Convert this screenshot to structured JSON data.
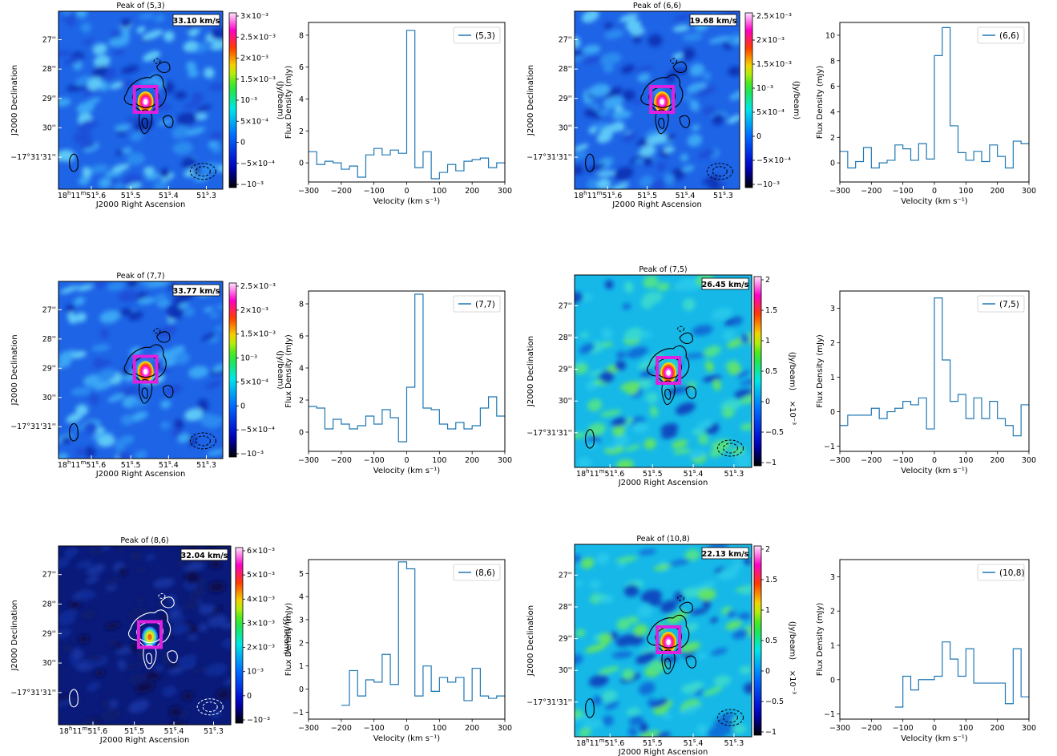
{
  "chart_data": [
    {
      "type": "heatmap",
      "panel": "map",
      "title": "Peak of (5,3)",
      "velocity_label": "33.10 km/s",
      "xlabel": "J2000 Right Ascension",
      "ylabel": "J2000 Declination",
      "ra_ticks": [
        "18h11m51s.6",
        "51s.5",
        "51s.4",
        "51s.3"
      ],
      "dec_ticks": [
        "27''",
        "28''",
        "29''",
        "30''",
        "−17°31'31''"
      ],
      "colorbar_label": "(Jy/beam)",
      "colorbar_ticks": [
        "3×10⁻³",
        "2.5×10⁻³",
        "2×10⁻³",
        "1.5×10⁻³",
        "10⁻³",
        "5×10⁻⁴",
        "0",
        "−5×10⁻⁴",
        "−10⁻³"
      ],
      "colorbar_multiplier": "",
      "contour_color": "#000000",
      "background": "blue",
      "colormap": "jet"
    },
    {
      "type": "line",
      "panel": "spectrum",
      "legend": "(5,3)",
      "xlabel": "Velocity (km s⁻¹)",
      "ylabel": "Flux Density (mJy)",
      "xlim": [
        -300,
        300
      ],
      "ylim": [
        -1.2,
        8.8
      ],
      "xticks": [
        -300,
        -200,
        -100,
        0,
        100,
        200,
        300
      ],
      "yticks": [
        0,
        2,
        4,
        6,
        8
      ],
      "x": [
        -300,
        -275,
        -250,
        -225,
        -200,
        -175,
        -150,
        -125,
        -100,
        -75,
        -50,
        -25,
        0,
        25,
        50,
        75,
        100,
        125,
        150,
        175,
        200,
        225,
        250,
        275
      ],
      "values": [
        0.7,
        -0.1,
        0.1,
        0.0,
        -0.4,
        -0.2,
        -0.9,
        0.5,
        0.9,
        0.5,
        0.8,
        0.6,
        8.3,
        -0.3,
        0.7,
        -1.0,
        -0.6,
        -0.1,
        -0.5,
        0.1,
        0.2,
        0.3,
        -0.3,
        0.0
      ]
    },
    {
      "type": "heatmap",
      "panel": "map",
      "title": "Peak of (6,6)",
      "velocity_label": "19.68 km/s",
      "xlabel": "J2000 Right Ascension",
      "ylabel": "J2000 Declination",
      "ra_ticks": [
        "18h11m51s.6",
        "51s.5",
        "51s.4",
        "51s.3"
      ],
      "dec_ticks": [
        "27''",
        "28''",
        "29''",
        "30''",
        "−17°31'31''"
      ],
      "colorbar_label": "(Jy/beam)",
      "colorbar_ticks": [
        "2.5×10⁻³",
        "2×10⁻³",
        "1.5×10⁻³",
        "10⁻³",
        "5×10⁻⁴",
        "0",
        "−5×10⁻⁴",
        "−10⁻³"
      ],
      "colorbar_multiplier": "",
      "contour_color": "#000000",
      "background": "blue",
      "colormap": "jet"
    },
    {
      "type": "line",
      "panel": "spectrum",
      "legend": "(6,6)",
      "xlabel": "Velocity (km s⁻¹)",
      "ylabel": "Flux Density (mJy)",
      "xlim": [
        -300,
        300
      ],
      "ylim": [
        -1.5,
        11
      ],
      "xticks": [
        -300,
        -200,
        -100,
        0,
        100,
        200,
        300
      ],
      "yticks": [
        0,
        2,
        4,
        6,
        8,
        10
      ],
      "x": [
        -300,
        -275,
        -250,
        -225,
        -200,
        -175,
        -150,
        -125,
        -100,
        -75,
        -50,
        -25,
        0,
        25,
        50,
        75,
        100,
        125,
        150,
        175,
        200,
        225,
        250,
        275
      ],
      "values": [
        0.9,
        -0.4,
        0.1,
        1.2,
        -0.4,
        0.0,
        0.2,
        1.4,
        1.1,
        0.2,
        1.5,
        0.3,
        8.4,
        10.6,
        2.9,
        0.8,
        0.2,
        0.9,
        0.1,
        1.4,
        0.5,
        -0.4,
        1.7,
        1.5
      ]
    },
    {
      "type": "heatmap",
      "panel": "map",
      "title": "Peak of (7,7)",
      "velocity_label": "33.77 km/s",
      "xlabel": "J2000 Right Ascension",
      "ylabel": "J2000 Declination",
      "ra_ticks": [
        "18h11m51s.6",
        "51s.5",
        "51s.4",
        "51s.3"
      ],
      "dec_ticks": [
        "27''",
        "28''",
        "29''",
        "30''",
        "−17°31'31''"
      ],
      "colorbar_label": "(Jy/beam)",
      "colorbar_ticks": [
        "2.5×10⁻³",
        "2×10⁻³",
        "1.5×10⁻³",
        "10⁻³",
        "5×10⁻⁴",
        "0",
        "−5×10⁻⁴",
        "−10⁻³"
      ],
      "colorbar_multiplier": "",
      "contour_color": "#000000",
      "background": "blue",
      "colormap": "jet"
    },
    {
      "type": "line",
      "panel": "spectrum",
      "legend": "(7,7)",
      "xlabel": "Velocity (km s⁻¹)",
      "ylabel": "Flux Density (mJy)",
      "xlim": [
        -300,
        300
      ],
      "ylim": [
        -1.2,
        8.8
      ],
      "xticks": [
        -300,
        -200,
        -100,
        0,
        100,
        200,
        300
      ],
      "yticks": [
        0,
        2,
        4,
        6,
        8
      ],
      "x": [
        -300,
        -275,
        -250,
        -225,
        -200,
        -175,
        -150,
        -125,
        -100,
        -75,
        -50,
        -25,
        0,
        25,
        50,
        75,
        100,
        125,
        150,
        175,
        200,
        225,
        250,
        275
      ],
      "values": [
        1.6,
        1.5,
        0.2,
        0.8,
        0.5,
        0.2,
        0.4,
        1.0,
        0.5,
        1.4,
        0.9,
        -0.6,
        2.8,
        8.6,
        1.5,
        1.4,
        0.5,
        0.2,
        0.6,
        0.2,
        0.4,
        1.5,
        2.2,
        1.0
      ]
    },
    {
      "type": "heatmap",
      "panel": "map",
      "title": "Peak of (7,5)",
      "velocity_label": "26.45 km/s",
      "xlabel": "J2000 Right Ascension",
      "ylabel": "J2000 Declination",
      "ra_ticks": [
        "18h11m51s.6",
        "51s.5",
        "51s.4",
        "51s.3"
      ],
      "dec_ticks": [
        "27''",
        "28''",
        "29''",
        "30''",
        "−17°31'31''"
      ],
      "colorbar_label": "(Jy/beam)",
      "colorbar_ticks": [
        "2",
        "1.5",
        "1",
        "0.5",
        "0",
        "−0.5",
        "−1"
      ],
      "colorbar_multiplier": "×10⁻³",
      "contour_color": "#000000",
      "background": "cyan",
      "colormap": "jet"
    },
    {
      "type": "line",
      "panel": "spectrum",
      "legend": "(7,5)",
      "xlabel": "Velocity (km s⁻¹)",
      "ylabel": "Flux Density (mJy)",
      "xlim": [
        -300,
        300
      ],
      "ylim": [
        -1.15,
        3.5
      ],
      "xticks": [
        -300,
        -200,
        -100,
        0,
        100,
        200,
        300
      ],
      "yticks": [
        -1,
        0,
        1,
        2,
        3
      ],
      "x": [
        -300,
        -275,
        -250,
        -225,
        -200,
        -175,
        -150,
        -125,
        -100,
        -75,
        -50,
        -25,
        0,
        25,
        50,
        75,
        100,
        125,
        150,
        175,
        200,
        225,
        250,
        275
      ],
      "values": [
        -0.4,
        -0.1,
        -0.1,
        -0.1,
        0.1,
        -0.2,
        0.0,
        0.1,
        0.3,
        0.2,
        0.4,
        -0.5,
        3.3,
        1.5,
        0.3,
        0.5,
        -0.2,
        0.4,
        -0.2,
        0.3,
        -0.2,
        -0.4,
        -0.7,
        0.2
      ]
    },
    {
      "type": "heatmap",
      "panel": "map",
      "title": "Peak of (8,6)",
      "velocity_label": "32.04 km/s",
      "xlabel": "J2000 Right Ascension",
      "ylabel": "J2000 Declination",
      "ra_ticks": [
        "18h11m51s.6",
        "51s.5",
        "51s.4",
        "51s.3"
      ],
      "dec_ticks": [
        "27''",
        "28''",
        "29''",
        "30''",
        "−17°31'31''"
      ],
      "colorbar_label": "(Jy/beam)",
      "colorbar_ticks": [
        "6×10⁻³",
        "5×10⁻³",
        "4×10⁻³",
        "3×10⁻³",
        "2×10⁻³",
        "10⁻³",
        "0",
        "−10⁻³"
      ],
      "colorbar_multiplier": "",
      "contour_color": "#ffffff",
      "background": "darkblue",
      "colormap": "jet"
    },
    {
      "type": "line",
      "panel": "spectrum",
      "legend": "(8,6)",
      "xlabel": "Velocity (km s⁻¹)",
      "ylabel": "Flux Density (mJy)",
      "xlim": [
        -300,
        300
      ],
      "ylim": [
        -1.3,
        5.6
      ],
      "xticks": [
        -300,
        -200,
        -100,
        0,
        100,
        200,
        300
      ],
      "yticks": [
        -1,
        0,
        1,
        2,
        3,
        4,
        5
      ],
      "x": [
        -200,
        -175,
        -150,
        -125,
        -100,
        -75,
        -50,
        -25,
        0,
        25,
        50,
        75,
        100,
        125,
        150,
        175,
        200,
        225,
        250,
        275
      ],
      "values": [
        -0.7,
        0.8,
        -0.3,
        0.4,
        0.3,
        1.5,
        0.2,
        5.5,
        5.2,
        -0.3,
        1.0,
        -0.1,
        0.5,
        0.3,
        0.5,
        -0.5,
        0.9,
        -0.3,
        -0.4,
        -0.3
      ]
    },
    {
      "type": "heatmap",
      "panel": "map",
      "title": "Peak of (10,8)",
      "velocity_label": "22.13 km/s",
      "xlabel": "J2000 Right Ascension",
      "ylabel": "J2000 Declination",
      "ra_ticks": [
        "18h11m51s.6",
        "51s.5",
        "51s.4",
        "51s.3"
      ],
      "dec_ticks": [
        "27''",
        "28''",
        "29''",
        "30''",
        "−17°31'31''"
      ],
      "colorbar_label": "(Jy/beam)",
      "colorbar_ticks": [
        "2",
        "1.5",
        "1",
        "0.5",
        "0",
        "−0.5",
        "−1"
      ],
      "colorbar_multiplier": "×10⁻³",
      "contour_color": "#000000",
      "background": "cyan",
      "colormap": "jet"
    },
    {
      "type": "line",
      "panel": "spectrum",
      "legend": "(10,8)",
      "xlabel": "Velocity (km s⁻¹)",
      "ylabel": "Flux Density (mJy)",
      "xlim": [
        -300,
        300
      ],
      "ylim": [
        -1.15,
        3.5
      ],
      "xticks": [
        -300,
        -200,
        -100,
        0,
        100,
        200,
        300
      ],
      "yticks": [
        -1,
        0,
        1,
        2,
        3
      ],
      "x": [
        -125,
        -100,
        -75,
        -50,
        -25,
        0,
        25,
        50,
        75,
        100,
        125,
        150,
        175,
        200,
        225,
        250,
        275
      ],
      "values": [
        -0.8,
        0.1,
        -0.3,
        0.0,
        0.0,
        0.1,
        1.1,
        0.6,
        0.1,
        0.9,
        -0.1,
        -0.1,
        -0.1,
        -0.1,
        -0.7,
        0.9,
        -0.5
      ]
    }
  ]
}
